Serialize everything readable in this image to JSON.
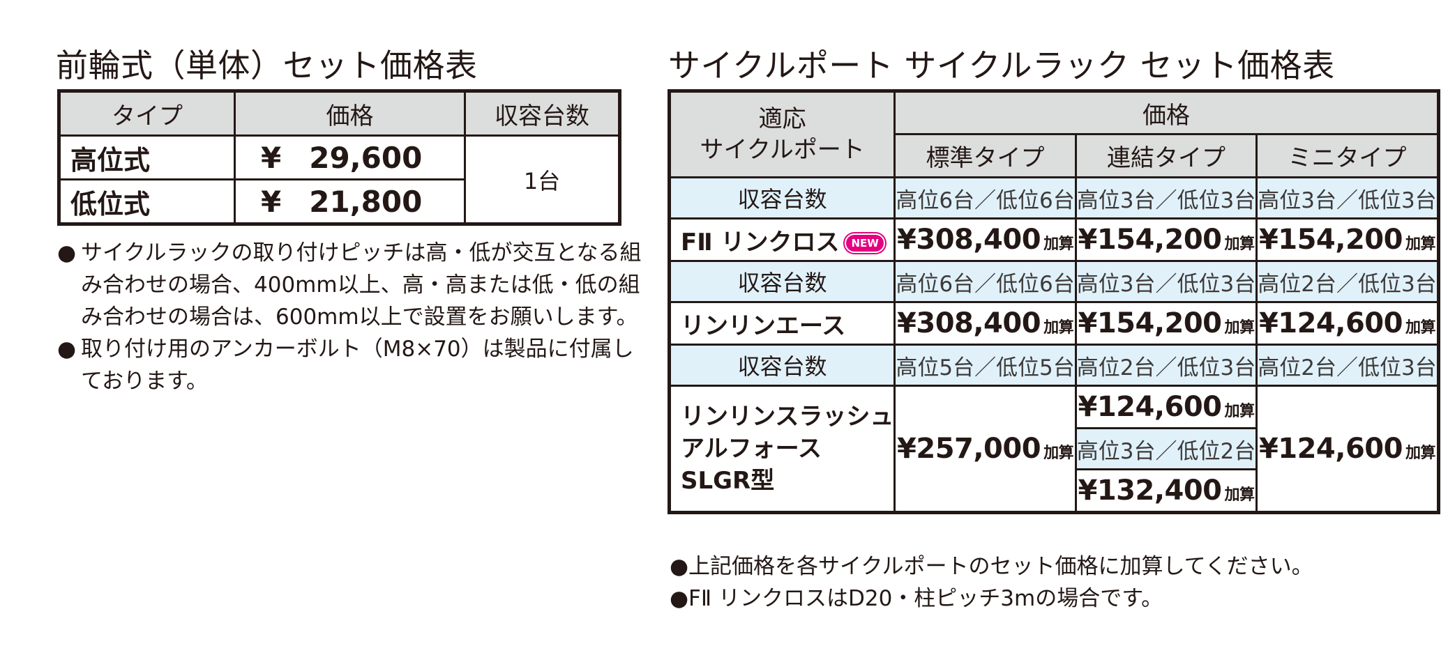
{
  "table1": {
    "title": "前輪式（単体）セット価格表",
    "headers": [
      "タイプ",
      "価格",
      "収容台数"
    ],
    "rows": [
      {
        "type": "高位式",
        "yen": "¥",
        "price": "29,600"
      },
      {
        "type": "低位式",
        "yen": "¥",
        "price": "21,800"
      }
    ],
    "capacity": "1台",
    "notes": [
      [
        "●",
        "サイクルラックの取り付けピッチは高・低が交互となる組"
      ],
      [
        "",
        "み合わせの場合、400mm以上、高・高または低・低の組"
      ],
      [
        "",
        "み合わせの場合は、600mm以上で設置をお願いします。"
      ],
      [
        "●",
        "取り付け用のアンカーボルト（M8×70）は製品に付属し"
      ],
      [
        "",
        "ております。"
      ]
    ]
  },
  "table2": {
    "title": "サイクルポート サイクルラック セット価格表",
    "header_port": [
      "適応",
      "サイクルポート"
    ],
    "header_price": "価格",
    "subheaders": [
      "標準タイプ",
      "連結タイプ",
      "ミニタイプ"
    ],
    "capacity_label": "収容台数",
    "add_suffix": "加算",
    "badge": "NEW",
    "products": [
      {
        "capacity": [
          "高位6台／低位6台",
          "高位3台／低位3台",
          "高位3台／低位3台"
        ],
        "name": "FⅡ リンクロス",
        "prices": [
          "¥308,400",
          "¥154,200",
          "¥154,200"
        ]
      },
      {
        "capacity": [
          "高位6台／低位6台",
          "高位3台／低位3台",
          "高位2台／低位3台"
        ],
        "name": "リンリンエース",
        "prices": [
          "¥308,400",
          "¥154,200",
          "¥124,600"
        ]
      }
    ],
    "last": {
      "capacity": [
        "高位5台／低位5台",
        "高位2台／低位3台",
        "高位2台／低位3台"
      ],
      "name_lines": [
        "リンリンスラッシュ",
        "アルフォース",
        "SLGR型"
      ],
      "standard": "¥257,000",
      "linked_top": "¥124,600",
      "linked_mid_capacity": "高位3台／低位2台",
      "linked_bottom": "¥132,400",
      "mini": "¥124,600"
    },
    "notes": [
      "●上記価格を各サイクルポートのセット価格に加算してください。",
      "●FⅡ リンクロスはD20・柱ピッチ3mの場合です。"
    ]
  }
}
